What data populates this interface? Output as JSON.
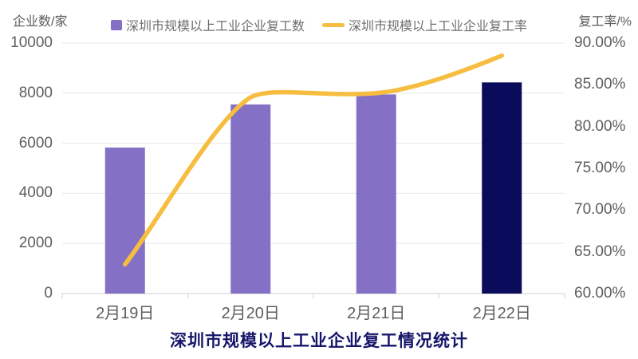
{
  "chart_data": {
    "type": "bar",
    "title": "深圳市规模以上工业企业复工情况统计",
    "categories": [
      "2月19日",
      "2月20日",
      "2月21日",
      "2月22日"
    ],
    "series": [
      {
        "name": "深圳市规模以上工业企业复工数",
        "type": "bar",
        "axis": "left",
        "values": [
          5830,
          7550,
          7950,
          8430
        ],
        "colors": [
          "#8471C6",
          "#8471C6",
          "#8471C6",
          "#0B0B5C"
        ]
      },
      {
        "name": "深圳市规模以上工业企业复工率",
        "type": "line",
        "axis": "right",
        "values": [
          63.5,
          83.5,
          84.0,
          88.5
        ],
        "color": "#F7BD41"
      }
    ],
    "y_left": {
      "name": "企业数/家",
      "min": 0,
      "max": 10000,
      "tick_labels": [
        "10000",
        "8000",
        "6000",
        "4000",
        "2000",
        "0"
      ]
    },
    "y_right": {
      "name": "复工率/%",
      "min": 60,
      "max": 90,
      "tick_labels": [
        "90.00%",
        "85.00%",
        "80.00%",
        "75.00%",
        "70.00%",
        "65.00%",
        "60.00%"
      ]
    },
    "grid": true,
    "legend_position": "top",
    "grid_color": "#E8E8E8",
    "axis_color": "#CFCFCF"
  }
}
